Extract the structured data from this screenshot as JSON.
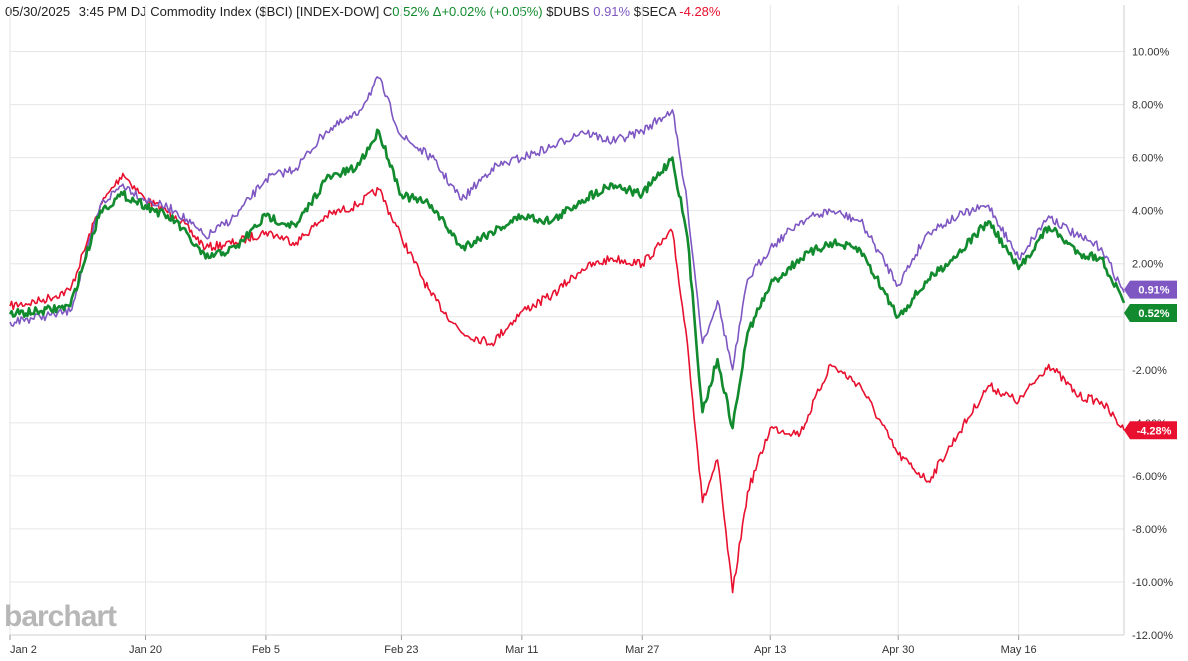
{
  "header": {
    "date": "05/30/2025",
    "time": "3:45 PM",
    "symbol": "DJ Commodity Index ($BCI) [INDEX-DOW]",
    "change_prefix": "C",
    "change_value": "0.52%",
    "delta": "Δ+0.02% (+0.05%)",
    "series2_name": "$DUBS",
    "series2_value": "0.91%",
    "series3_name": "$SECA",
    "series3_value": "-4.28%"
  },
  "watermark": "barchart",
  "colors": {
    "bci": "#128a2e",
    "dubs": "#7e57c2",
    "seca": "#e8102e",
    "grid": "#e6e6e6"
  },
  "chart_data": {
    "type": "line",
    "x_ticks": [
      "Jan 2",
      "Jan 20",
      "Feb 5",
      "Feb 23",
      "Mar 11",
      "Mar 27",
      "Apr 13",
      "Apr 30",
      "May 16"
    ],
    "y_ticks": [
      "10.00%",
      "8.00%",
      "6.00%",
      "4.00%",
      "2.00%",
      "0.00%",
      "-2.00%",
      "-4.00%",
      "-6.00%",
      "-8.00%",
      "-10.00%",
      "-12.00%"
    ],
    "ylim": [
      -12,
      11
    ],
    "x_range": [
      "Jan 2",
      "May 30"
    ],
    "series": [
      {
        "name": "$BCI",
        "last_label": "0.52%",
        "x": [
          "Jan 2",
          "Jan 6",
          "Jan 10",
          "Jan 14",
          "Jan 17",
          "Jan 20",
          "Jan 24",
          "Jan 28",
          "Feb 1",
          "Feb 5",
          "Feb 9",
          "Feb 13",
          "Feb 17",
          "Feb 20",
          "Feb 23",
          "Feb 27",
          "Mar 3",
          "Mar 7",
          "Mar 11",
          "Mar 15",
          "Mar 19",
          "Mar 23",
          "Mar 27",
          "Mar 31",
          "Apr 2",
          "Apr 4",
          "Apr 6",
          "Apr 8",
          "Apr 10",
          "Apr 13",
          "Apr 17",
          "Apr 21",
          "Apr 25",
          "Apr 30",
          "May 4",
          "May 8",
          "May 12",
          "May 16",
          "May 20",
          "May 24",
          "May 27",
          "May 30"
        ],
        "y": [
          0.1,
          0.2,
          0.4,
          4.0,
          4.6,
          4.2,
          3.6,
          2.2,
          2.6,
          3.8,
          3.4,
          5.2,
          5.6,
          7.0,
          4.6,
          4.2,
          2.6,
          3.2,
          3.8,
          3.6,
          4.4,
          5.0,
          4.6,
          6.0,
          3.0,
          -3.6,
          -1.6,
          -4.2,
          -0.6,
          1.2,
          2.2,
          2.8,
          2.5,
          0.0,
          1.4,
          2.4,
          3.6,
          1.8,
          3.4,
          2.4,
          2.2,
          0.52
        ]
      },
      {
        "name": "$DUBS",
        "last_label": "0.91%",
        "x": [
          "Jan 2",
          "Jan 6",
          "Jan 10",
          "Jan 14",
          "Jan 17",
          "Jan 20",
          "Jan 24",
          "Jan 28",
          "Feb 1",
          "Feb 5",
          "Feb 9",
          "Feb 13",
          "Feb 17",
          "Feb 20",
          "Feb 23",
          "Feb 27",
          "Mar 3",
          "Mar 7",
          "Mar 11",
          "Mar 15",
          "Mar 19",
          "Mar 23",
          "Mar 27",
          "Mar 31",
          "Apr 2",
          "Apr 4",
          "Apr 6",
          "Apr 8",
          "Apr 10",
          "Apr 13",
          "Apr 17",
          "Apr 21",
          "Apr 25",
          "Apr 30",
          "May 4",
          "May 8",
          "May 12",
          "May 16",
          "May 20",
          "May 24",
          "May 27",
          "May 30"
        ],
        "y": [
          -0.2,
          0.0,
          0.2,
          4.2,
          5.0,
          4.4,
          4.0,
          3.0,
          3.8,
          5.2,
          5.6,
          7.0,
          7.6,
          9.0,
          6.8,
          6.0,
          4.4,
          5.6,
          6.0,
          6.4,
          7.0,
          6.6,
          7.0,
          7.8,
          4.2,
          -1.0,
          0.6,
          -2.0,
          1.4,
          2.6,
          3.6,
          4.0,
          3.6,
          1.2,
          3.2,
          3.8,
          4.2,
          2.2,
          3.8,
          3.0,
          2.6,
          0.91
        ]
      },
      {
        "name": "$SECA",
        "last_label": "-4.28%",
        "x": [
          "Jan 2",
          "Jan 6",
          "Jan 10",
          "Jan 14",
          "Jan 17",
          "Jan 20",
          "Jan 24",
          "Jan 28",
          "Feb 1",
          "Feb 5",
          "Feb 9",
          "Feb 13",
          "Feb 17",
          "Feb 20",
          "Feb 23",
          "Feb 27",
          "Mar 3",
          "Mar 7",
          "Mar 11",
          "Mar 15",
          "Mar 19",
          "Mar 23",
          "Mar 27",
          "Mar 31",
          "Apr 2",
          "Apr 4",
          "Apr 6",
          "Apr 8",
          "Apr 10",
          "Apr 13",
          "Apr 17",
          "Apr 21",
          "Apr 25",
          "Apr 30",
          "May 4",
          "May 8",
          "May 12",
          "May 16",
          "May 20",
          "May 24",
          "May 27",
          "May 30"
        ],
        "y": [
          0.4,
          0.6,
          1.0,
          4.2,
          5.4,
          4.4,
          3.8,
          2.6,
          2.8,
          3.2,
          2.8,
          3.8,
          4.2,
          4.8,
          3.0,
          0.8,
          -0.6,
          -1.0,
          0.2,
          0.8,
          1.8,
          2.2,
          2.0,
          3.2,
          -1.0,
          -7.0,
          -5.4,
          -10.4,
          -6.6,
          -4.2,
          -4.4,
          -1.8,
          -2.6,
          -5.2,
          -6.2,
          -4.4,
          -2.6,
          -3.2,
          -1.8,
          -3.0,
          -3.2,
          -4.28
        ]
      }
    ]
  }
}
